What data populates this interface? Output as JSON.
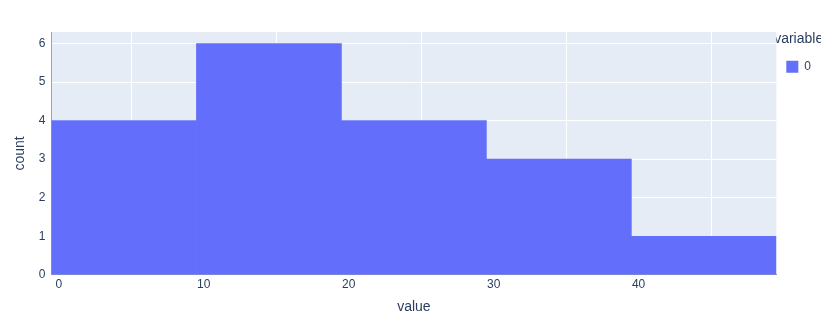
{
  "chart_data": {
    "type": "histogram",
    "bins": [
      -0.5,
      9.5,
      19.5,
      29.5,
      39.5,
      49.5
    ],
    "series": [
      {
        "name": "0",
        "color": "#636efa",
        "values": [
          4,
          6,
          4,
          3,
          1
        ]
      }
    ],
    "x_label": "value",
    "y_label": "count",
    "legend_title": "variable",
    "legend": "right",
    "xlim": [
      -0.5,
      49.5
    ],
    "xticks": [
      0,
      10,
      20,
      30,
      40
    ],
    "ylim": [
      0,
      6.3
    ],
    "yticks": [
      0,
      1,
      2,
      3,
      4,
      5,
      6
    ],
    "grid": true
  }
}
